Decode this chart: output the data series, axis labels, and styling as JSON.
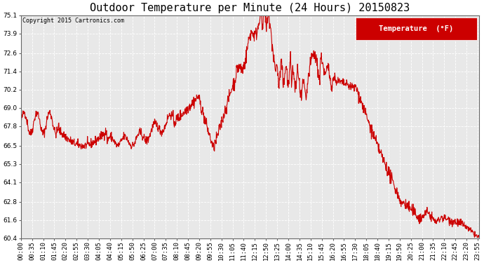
{
  "title": "Outdoor Temperature per Minute (24 Hours) 20150823",
  "copyright_text": "Copyright 2015 Cartronics.com",
  "legend_label": "Temperature  (°F)",
  "legend_bg": "#cc0000",
  "legend_text_color": "#ffffff",
  "line_color": "#cc0000",
  "bg_color": "#ffffff",
  "plot_bg_color": "#e8e8e8",
  "grid_color": "#ffffff",
  "ylim": [
    60.4,
    75.1
  ],
  "yticks": [
    60.4,
    61.6,
    62.8,
    64.1,
    65.3,
    66.5,
    67.8,
    69.0,
    70.2,
    71.4,
    72.6,
    73.9,
    75.1
  ],
  "title_fontsize": 11,
  "tick_fontsize": 6.5,
  "line_width": 0.8
}
